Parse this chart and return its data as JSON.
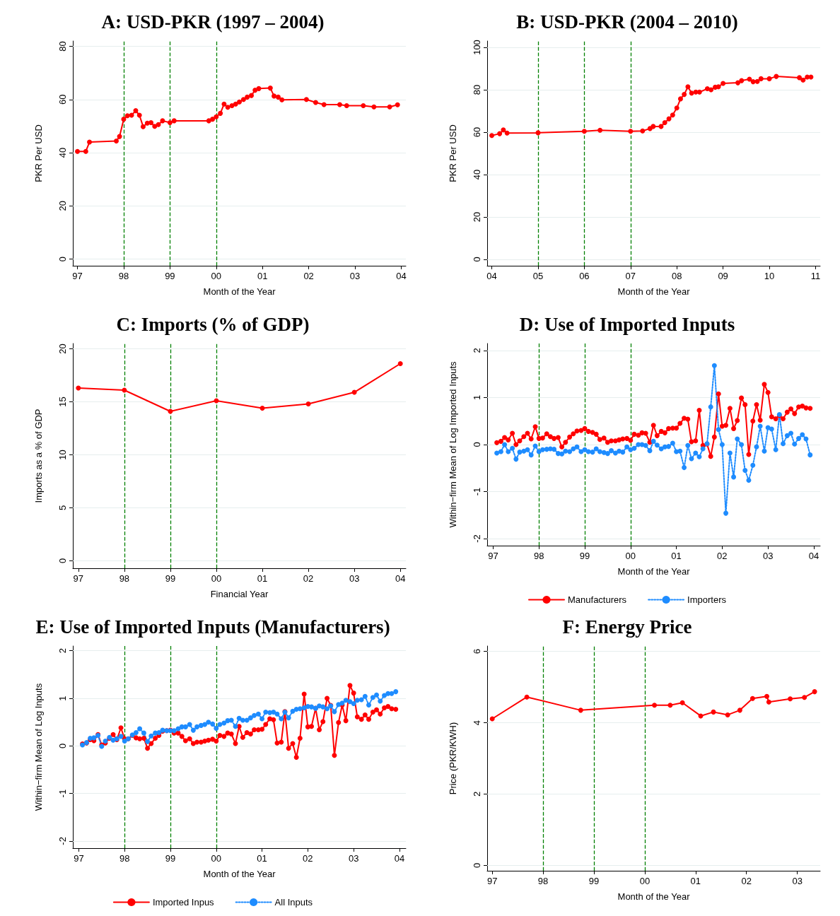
{
  "chart_data": [
    {
      "type": "line",
      "title": "A: USD-PKR (1997 – 2004)",
      "xlabel": "Month of the Year",
      "ylabel": "PKR Per USD",
      "xlim": [
        1996.9,
        2004.1
      ],
      "ylim": [
        -2.5,
        82
      ],
      "xticks": [
        {
          "value": 1997,
          "label": "97"
        },
        {
          "value": 1998,
          "label": "98"
        },
        {
          "value": 1999,
          "label": "99"
        },
        {
          "value": 2000,
          "label": "00"
        },
        {
          "value": 2001,
          "label": "01"
        },
        {
          "value": 2002,
          "label": "02"
        },
        {
          "value": 2003,
          "label": "03"
        },
        {
          "value": 2004,
          "label": "04"
        }
      ],
      "yticks": [
        0,
        20,
        40,
        60,
        80
      ],
      "grid": "y",
      "marker": "circle",
      "line_style": "solid",
      "ref_lines": [
        {
          "axis": "x",
          "value": 1998,
          "color": "#008000",
          "line_style": "dashed"
        },
        {
          "axis": "x",
          "value": 1999,
          "color": "#008000",
          "line_style": "dashed"
        },
        {
          "axis": "x",
          "value": 2000,
          "color": "#008000",
          "line_style": "dashed"
        }
      ],
      "series": [
        {
          "color": "#ff0000",
          "x": [
            1997.0,
            1997.18,
            1997.26,
            1997.84,
            1997.91,
            1998.0,
            1998.08,
            1998.17,
            1998.26,
            1998.34,
            1998.42,
            1998.51,
            1998.59,
            1998.67,
            1998.75,
            1998.84,
            1999.0,
            1999.09,
            1999.84,
            1999.92,
            2000.0,
            2000.09,
            2000.17,
            2000.25,
            2000.34,
            2000.42,
            2000.5,
            2000.59,
            2000.67,
            2000.76,
            2000.84,
            2000.92,
            2001.17,
            2001.25,
            2001.34,
            2001.42,
            2001.95,
            2002.15,
            2002.33,
            2002.67,
            2002.82,
            2003.18,
            2003.41,
            2003.75,
            2003.92
          ],
          "values": [
            40.5,
            40.5,
            44,
            44.4,
            46.1,
            52.6,
            53.9,
            54.1,
            55.8,
            54.1,
            49.8,
            51.1,
            51.3,
            49.9,
            50.6,
            52.0,
            51.3,
            52.0,
            52.0,
            52.6,
            53.5,
            54.8,
            58.3,
            57.1,
            57.7,
            58.3,
            59.1,
            60.0,
            60.9,
            61.5,
            63.5,
            64.1,
            64.3,
            61.3,
            60.9,
            59.9,
            60.0,
            58.9,
            58.1,
            58.1,
            57.7,
            57.7,
            57.2,
            57.2,
            58.0
          ]
        }
      ]
    },
    {
      "type": "line",
      "title": "B: USD-PKR (2004 – 2010)",
      "xlabel": "Month of the Year",
      "ylabel": "PKR Per USD",
      "xlim": [
        2003.9,
        2011.1
      ],
      "ylim": [
        -3,
        103
      ],
      "xticks": [
        {
          "value": 2004,
          "label": "04"
        },
        {
          "value": 2005,
          "label": "05"
        },
        {
          "value": 2006,
          "label": "06"
        },
        {
          "value": 2007,
          "label": "07"
        },
        {
          "value": 2008,
          "label": "08"
        },
        {
          "value": 2009,
          "label": "09"
        },
        {
          "value": 2010,
          "label": "10"
        },
        {
          "value": 2011,
          "label": "11"
        }
      ],
      "yticks": [
        0,
        20,
        40,
        60,
        80,
        100
      ],
      "grid": "y",
      "marker": "circle",
      "line_style": "solid",
      "ref_lines": [
        {
          "axis": "x",
          "value": 2005,
          "color": "#008000",
          "line_style": "dashed"
        },
        {
          "axis": "x",
          "value": 2006,
          "color": "#008000",
          "line_style": "dashed"
        },
        {
          "axis": "x",
          "value": 2007,
          "color": "#008000",
          "line_style": "dashed"
        }
      ],
      "series": [
        {
          "color": "#ff0000",
          "x": [
            2004.0,
            2004.17,
            2004.25,
            2004.33,
            2005.0,
            2006.0,
            2006.34,
            2007.0,
            2007.26,
            2007.42,
            2007.49,
            2007.66,
            2007.74,
            2007.83,
            2007.91,
            2008.0,
            2008.08,
            2008.16,
            2008.24,
            2008.32,
            2008.41,
            2008.49,
            2008.66,
            2008.74,
            2008.83,
            2008.9,
            2009.0,
            2009.32,
            2009.4,
            2009.57,
            2009.65,
            2009.74,
            2009.82,
            2010.0,
            2010.15,
            2010.65,
            2010.73,
            2010.82,
            2010.9
          ],
          "values": [
            58.4,
            59.3,
            61.1,
            59.6,
            59.7,
            60.4,
            60.9,
            60.4,
            60.6,
            61.7,
            62.7,
            62.7,
            64.5,
            66.3,
            68.1,
            71.4,
            75.7,
            77.8,
            81.4,
            78.4,
            78.9,
            78.9,
            80.5,
            80.0,
            81.2,
            81.4,
            83.0,
            83.3,
            84.3,
            85.0,
            83.8,
            83.9,
            85.2,
            85.2,
            86.3,
            85.7,
            84.6,
            86.0,
            86.0
          ]
        }
      ]
    },
    {
      "type": "line",
      "title": "C: Imports (% of GDP)",
      "xlabel": "Financial Year",
      "ylabel": "Imports as a % of GDP",
      "xlim": [
        1996.88,
        2004.12
      ],
      "ylim": [
        -0.7,
        20.5
      ],
      "xticks": [
        {
          "value": 1997,
          "label": "97"
        },
        {
          "value": 1998,
          "label": "98"
        },
        {
          "value": 1999,
          "label": "99"
        },
        {
          "value": 2000,
          "label": "00"
        },
        {
          "value": 2001,
          "label": "01"
        },
        {
          "value": 2002,
          "label": "02"
        },
        {
          "value": 2003,
          "label": "03"
        },
        {
          "value": 2004,
          "label": "04"
        }
      ],
      "yticks": [
        0,
        5,
        10,
        15,
        20
      ],
      "grid": "y",
      "marker": "circle",
      "line_style": "solid",
      "ref_lines": [
        {
          "axis": "x",
          "value": 1998,
          "color": "#008000",
          "line_style": "dashed"
        },
        {
          "axis": "x",
          "value": 1999,
          "color": "#008000",
          "line_style": "dashed"
        },
        {
          "axis": "x",
          "value": 2000,
          "color": "#008000",
          "line_style": "dashed"
        }
      ],
      "series": [
        {
          "color": "#ff0000",
          "x": [
            1997,
            1998,
            1999,
            2000,
            2001,
            2002,
            2003,
            2004
          ],
          "values": [
            16.3,
            16.1,
            14.1,
            15.1,
            14.4,
            14.8,
            15.9,
            18.6
          ]
        }
      ]
    },
    {
      "type": "line",
      "title": "D: Use of Imported Inputs",
      "xlabel": "Month of the Year",
      "ylabel": "Within−firm Mean of Log Imported Inputs",
      "xlim": [
        1996.87,
        2004.14
      ],
      "ylim": [
        -2.15,
        2.15
      ],
      "xticks": [
        {
          "value": 1997,
          "label": "97"
        },
        {
          "value": 1998,
          "label": "98"
        },
        {
          "value": 1999,
          "label": "99"
        },
        {
          "value": 2000,
          "label": "00"
        },
        {
          "value": 2001,
          "label": "01"
        },
        {
          "value": 2002,
          "label": "02"
        },
        {
          "value": 2003,
          "label": "03"
        },
        {
          "value": 2004,
          "label": "04"
        }
      ],
      "yticks": [
        -2,
        -1,
        0,
        1,
        2
      ],
      "grid": "y",
      "marker": "circle",
      "legend": "bottom",
      "ref_lines": [
        {
          "axis": "x",
          "value": 1998,
          "color": "#008000",
          "line_style": "dashed"
        },
        {
          "axis": "x",
          "value": 1999,
          "color": "#008000",
          "line_style": "dashed"
        },
        {
          "axis": "x",
          "value": 2000,
          "color": "#008000",
          "line_style": "dashed"
        }
      ],
      "x": [
        1997.08,
        1997.17,
        1997.25,
        1997.33,
        1997.42,
        1997.5,
        1997.58,
        1997.67,
        1997.75,
        1997.83,
        1997.92,
        1998,
        1998.08,
        1998.17,
        1998.25,
        1998.33,
        1998.42,
        1998.5,
        1998.58,
        1998.67,
        1998.75,
        1998.83,
        1998.92,
        1999,
        1999.08,
        1999.17,
        1999.25,
        1999.33,
        1999.42,
        1999.5,
        1999.58,
        1999.67,
        1999.75,
        1999.83,
        1999.92,
        2000,
        2000.08,
        2000.17,
        2000.25,
        2000.33,
        2000.42,
        2000.5,
        2000.58,
        2000.67,
        2000.75,
        2000.83,
        2000.92,
        2001,
        2001.08,
        2001.17,
        2001.25,
        2001.33,
        2001.42,
        2001.5,
        2001.58,
        2001.67,
        2001.75,
        2001.83,
        2001.92,
        2002,
        2002.08,
        2002.17,
        2002.25,
        2002.33,
        2002.42,
        2002.5,
        2002.58,
        2002.67,
        2002.75,
        2002.83,
        2002.92,
        2003,
        2003.08,
        2003.17,
        2003.25,
        2003.33,
        2003.42,
        2003.5,
        2003.58,
        2003.67,
        2003.75,
        2003.83,
        2003.92
      ],
      "series": [
        {
          "name": "Manufacturers",
          "color": "#ff0000",
          "line_style": "solid",
          "values": [
            0.04,
            0.07,
            0.15,
            0.1,
            0.24,
            0.0,
            0.08,
            0.17,
            0.24,
            0.12,
            0.38,
            0.13,
            0.14,
            0.23,
            0.17,
            0.13,
            0.15,
            -0.05,
            0.05,
            0.16,
            0.23,
            0.29,
            0.3,
            0.34,
            0.28,
            0.26,
            0.22,
            0.11,
            0.14,
            0.05,
            0.08,
            0.08,
            0.1,
            0.12,
            0.13,
            0.09,
            0.22,
            0.2,
            0.25,
            0.24,
            0.05,
            0.41,
            0.19,
            0.28,
            0.25,
            0.34,
            0.35,
            0.35,
            0.45,
            0.56,
            0.54,
            0.06,
            0.08,
            0.73,
            -0.02,
            0.01,
            -0.25,
            0.16,
            1.08,
            0.39,
            0.41,
            0.77,
            0.34,
            0.51,
            0.99,
            0.85,
            -0.21,
            0.5,
            0.85,
            0.52,
            1.28,
            1.11,
            0.59,
            0.55,
            0.62,
            0.55,
            0.69,
            0.76,
            0.66,
            0.8,
            0.82,
            0.78,
            0.77
          ]
        },
        {
          "name": "Importers",
          "color": "#1e8cff",
          "line_style": "dotted",
          "values": [
            -0.18,
            -0.15,
            0.0,
            -0.15,
            -0.08,
            -0.31,
            -0.16,
            -0.14,
            -0.11,
            -0.22,
            -0.03,
            -0.15,
            -0.11,
            -0.1,
            -0.09,
            -0.1,
            -0.19,
            -0.2,
            -0.14,
            -0.15,
            -0.09,
            -0.05,
            -0.15,
            -0.11,
            -0.15,
            -0.16,
            -0.09,
            -0.15,
            -0.17,
            -0.19,
            -0.13,
            -0.18,
            -0.14,
            -0.16,
            -0.05,
            -0.11,
            -0.08,
            0.0,
            0.0,
            -0.02,
            -0.13,
            0.07,
            -0.01,
            -0.09,
            -0.05,
            -0.04,
            0.03,
            -0.15,
            -0.14,
            -0.49,
            -0.02,
            -0.3,
            -0.18,
            -0.26,
            -0.09,
            0.02,
            0.8,
            1.68,
            0.32,
            0.0,
            -1.46,
            -0.18,
            -0.69,
            0.12,
            0.0,
            -0.55,
            -0.76,
            -0.44,
            -0.05,
            0.39,
            -0.14,
            0.36,
            0.33,
            -0.11,
            0.64,
            0.02,
            0.19,
            0.24,
            0.01,
            0.13,
            0.21,
            0.12,
            -0.22
          ]
        }
      ]
    },
    {
      "type": "line",
      "title": "E: Use of Imported Inputs (Manufacturers)",
      "xlabel": "Month of the Year",
      "ylabel": "Within−firm Mean of Log Inputs",
      "xlim": [
        1996.87,
        2004.14
      ],
      "ylim": [
        -2.15,
        2.1
      ],
      "xticks": [
        {
          "value": 1997,
          "label": "97"
        },
        {
          "value": 1998,
          "label": "98"
        },
        {
          "value": 1999,
          "label": "99"
        },
        {
          "value": 2000,
          "label": "00"
        },
        {
          "value": 2001,
          "label": "01"
        },
        {
          "value": 2002,
          "label": "02"
        },
        {
          "value": 2003,
          "label": "03"
        },
        {
          "value": 2004,
          "label": "04"
        }
      ],
      "yticks": [
        -2,
        -1,
        0,
        1,
        2
      ],
      "grid": "y",
      "marker": "circle",
      "legend": "bottom",
      "ref_lines": [
        {
          "axis": "x",
          "value": 1998,
          "color": "#008000",
          "line_style": "dashed"
        },
        {
          "axis": "x",
          "value": 1999,
          "color": "#008000",
          "line_style": "dashed"
        },
        {
          "axis": "x",
          "value": 2000,
          "color": "#008000",
          "line_style": "dashed"
        }
      ],
      "x": [
        1997.08,
        1997.17,
        1997.25,
        1997.33,
        1997.42,
        1997.5,
        1997.58,
        1997.67,
        1997.75,
        1997.83,
        1997.92,
        1998,
        1998.08,
        1998.17,
        1998.25,
        1998.33,
        1998.42,
        1998.5,
        1998.58,
        1998.67,
        1998.75,
        1998.83,
        1998.92,
        1999,
        1999.08,
        1999.17,
        1999.25,
        1999.33,
        1999.42,
        1999.5,
        1999.58,
        1999.67,
        1999.75,
        1999.83,
        1999.92,
        2000,
        2000.08,
        2000.17,
        2000.25,
        2000.33,
        2000.42,
        2000.5,
        2000.58,
        2000.67,
        2000.75,
        2000.83,
        2000.92,
        2001,
        2001.08,
        2001.17,
        2001.25,
        2001.33,
        2001.42,
        2001.5,
        2001.58,
        2001.67,
        2001.75,
        2001.83,
        2001.92,
        2002,
        2002.08,
        2002.17,
        2002.25,
        2002.33,
        2002.42,
        2002.5,
        2002.58,
        2002.67,
        2002.75,
        2002.83,
        2002.92,
        2003,
        2003.08,
        2003.17,
        2003.25,
        2003.33,
        2003.42,
        2003.5,
        2003.58,
        2003.67,
        2003.75,
        2003.83,
        2003.92
      ],
      "series": [
        {
          "name": "Imported Inpus",
          "color": "#ff0000",
          "line_style": "solid",
          "values": [
            0.04,
            0.06,
            0.13,
            0.11,
            0.24,
            0.02,
            0.06,
            0.16,
            0.24,
            0.13,
            0.38,
            0.15,
            0.15,
            0.22,
            0.17,
            0.15,
            0.16,
            -0.05,
            0.05,
            0.16,
            0.22,
            0.31,
            0.32,
            0.33,
            0.27,
            0.27,
            0.2,
            0.11,
            0.15,
            0.05,
            0.08,
            0.08,
            0.1,
            0.12,
            0.14,
            0.1,
            0.22,
            0.2,
            0.27,
            0.25,
            0.05,
            0.41,
            0.18,
            0.28,
            0.25,
            0.34,
            0.34,
            0.35,
            0.45,
            0.57,
            0.55,
            0.06,
            0.08,
            0.72,
            -0.05,
            0.05,
            -0.24,
            0.16,
            1.09,
            0.4,
            0.41,
            0.79,
            0.34,
            0.51,
            1.0,
            0.85,
            -0.2,
            0.49,
            0.86,
            0.53,
            1.27,
            1.11,
            0.61,
            0.56,
            0.65,
            0.56,
            0.71,
            0.76,
            0.67,
            0.8,
            0.83,
            0.78,
            0.77
          ]
        },
        {
          "name": "All Inputs",
          "color": "#1e8cff",
          "line_style": "dotted",
          "values": [
            0.02,
            0.07,
            0.16,
            0.17,
            0.22,
            -0.01,
            0.1,
            0.18,
            0.12,
            0.15,
            0.2,
            0.1,
            0.15,
            0.23,
            0.28,
            0.36,
            0.27,
            0.09,
            0.21,
            0.27,
            0.28,
            0.33,
            0.32,
            0.32,
            0.32,
            0.36,
            0.4,
            0.4,
            0.45,
            0.33,
            0.4,
            0.43,
            0.45,
            0.5,
            0.46,
            0.37,
            0.45,
            0.48,
            0.53,
            0.54,
            0.41,
            0.58,
            0.54,
            0.54,
            0.59,
            0.64,
            0.67,
            0.57,
            0.71,
            0.7,
            0.71,
            0.67,
            0.57,
            0.71,
            0.59,
            0.73,
            0.77,
            0.78,
            0.8,
            0.83,
            0.82,
            0.79,
            0.84,
            0.82,
            0.78,
            0.84,
            0.72,
            0.87,
            0.9,
            0.96,
            0.93,
            0.89,
            0.96,
            0.97,
            1.04,
            0.86,
            1.02,
            1.07,
            0.94,
            1.06,
            1.1,
            1.1,
            1.14
          ]
        }
      ]
    },
    {
      "type": "line",
      "title": "F: Energy Price",
      "xlabel": "Month of the Year",
      "ylabel": "Price (PKR/KWH)",
      "xlim": [
        1996.9,
        2003.45
      ],
      "ylim": [
        -0.15,
        6.15
      ],
      "xticks": [
        {
          "value": 1997,
          "label": "97"
        },
        {
          "value": 1998,
          "label": "98"
        },
        {
          "value": 1999,
          "label": "99"
        },
        {
          "value": 2000,
          "label": "00"
        },
        {
          "value": 2001,
          "label": "01"
        },
        {
          "value": 2002,
          "label": "02"
        },
        {
          "value": 2003,
          "label": "03"
        }
      ],
      "yticks": [
        0,
        2,
        4,
        6
      ],
      "grid": "y",
      "marker": "circle",
      "line_style": "solid",
      "ref_lines": [
        {
          "axis": "x",
          "value": 1998,
          "color": "#008000",
          "line_style": "dashed"
        },
        {
          "axis": "x",
          "value": 1999,
          "color": "#008000",
          "line_style": "dashed"
        },
        {
          "axis": "x",
          "value": 2000,
          "color": "#008000",
          "line_style": "dashed"
        }
      ],
      "series": [
        {
          "color": "#ff0000",
          "x": [
            1997.0,
            1997.68,
            1998.74,
            2000.19,
            2000.5,
            2000.74,
            2001.1,
            2001.35,
            2001.63,
            2001.87,
            2002.12,
            2002.4,
            2002.44,
            2002.86,
            2003.14,
            2003.34
          ],
          "values": [
            4.11,
            4.72,
            4.35,
            4.49,
            4.49,
            4.56,
            4.19,
            4.3,
            4.22,
            4.35,
            4.68,
            4.74,
            4.58,
            4.67,
            4.71,
            4.87
          ]
        }
      ]
    }
  ]
}
